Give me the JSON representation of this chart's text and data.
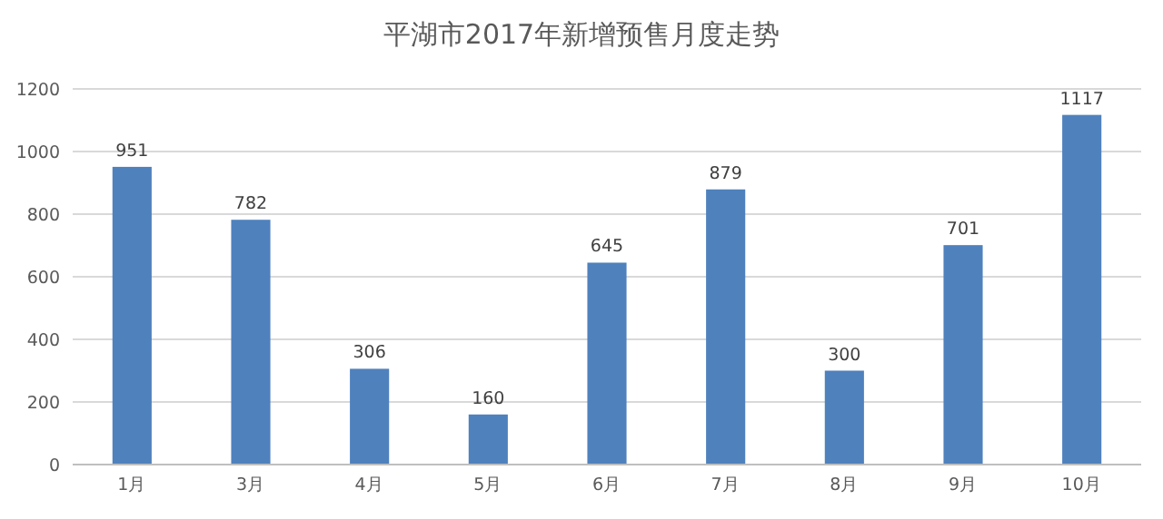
{
  "chart_data": {
    "type": "bar",
    "title": "平湖市2017年新增预售月度走势",
    "categories": [
      "1月",
      "3月",
      "4月",
      "5月",
      "6月",
      "7月",
      "8月",
      "9月",
      "10月"
    ],
    "values": [
      951,
      782,
      306,
      160,
      645,
      879,
      300,
      701,
      1117
    ],
    "color": "#4f81bd",
    "ylim": [
      0,
      1200
    ],
    "yticks": [
      0,
      200,
      400,
      600,
      800,
      1000,
      1200
    ],
    "grid": "y",
    "data_labels": true
  }
}
